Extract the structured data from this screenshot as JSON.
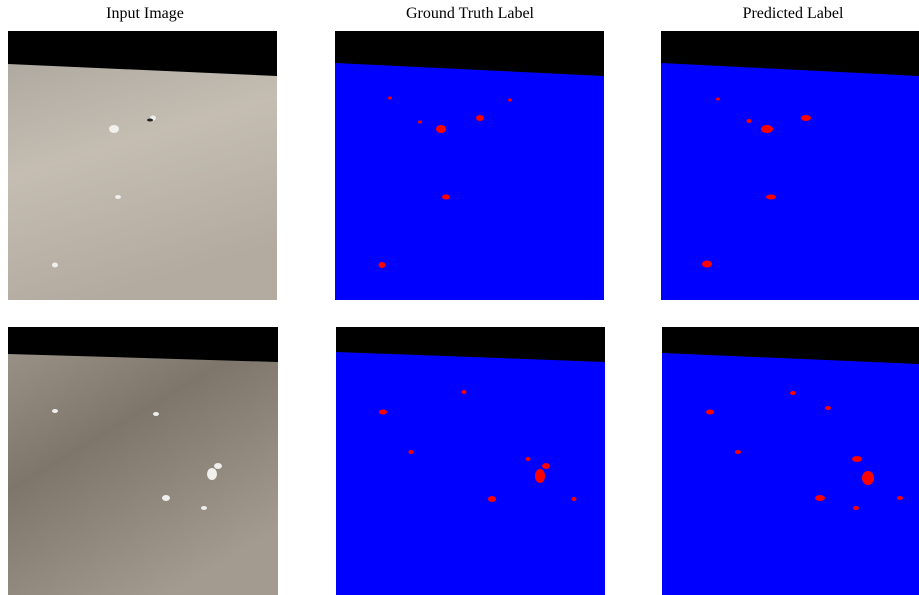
{
  "header": {
    "columns": [
      "Input Image",
      "Ground Truth Label",
      "Predicted Label"
    ]
  }
}
